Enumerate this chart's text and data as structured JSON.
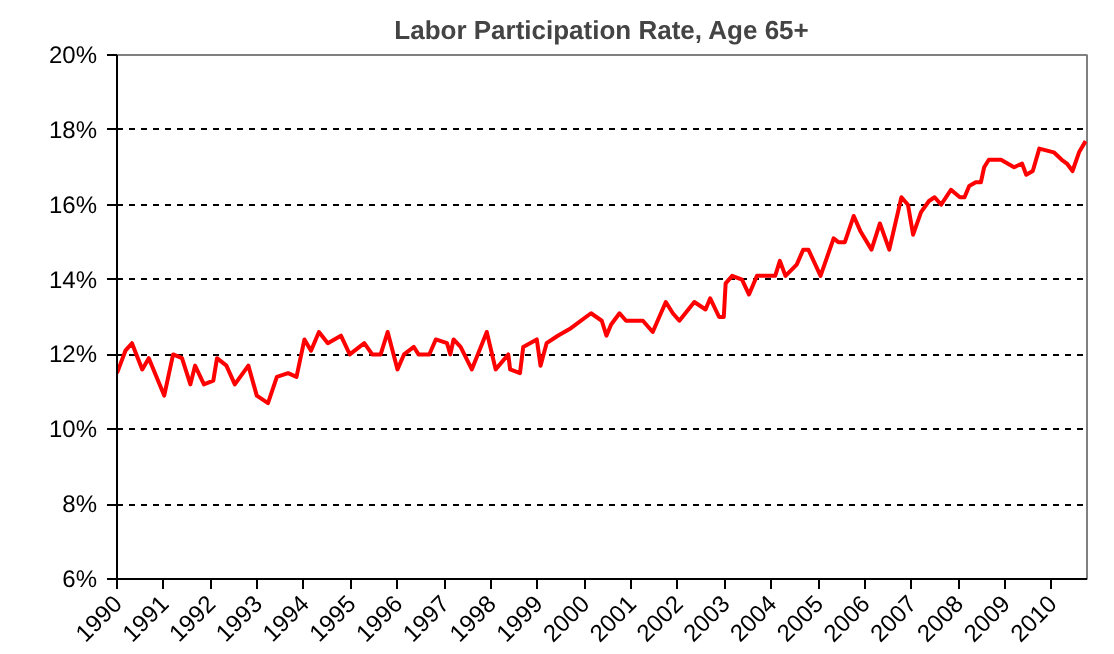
{
  "chart_data": {
    "type": "line",
    "title": "Labor Participation Rate, Age 65+",
    "x": [
      1990.0,
      1990.18,
      1990.32,
      1990.54,
      1990.68,
      1991.01,
      1991.2,
      1991.39,
      1991.57,
      1991.67,
      1991.86,
      1992.06,
      1992.14,
      1992.34,
      1992.52,
      1992.81,
      1992.99,
      1993.23,
      1993.42,
      1993.66,
      1993.84,
      1994.01,
      1994.15,
      1994.32,
      1994.51,
      1994.79,
      1994.98,
      1995.29,
      1995.46,
      1995.64,
      1995.79,
      1996.0,
      1996.14,
      1996.35,
      1996.45,
      1996.68,
      1996.82,
      1997.06,
      1997.13,
      1997.2,
      1997.35,
      1997.59,
      1997.91,
      1998.1,
      1998.37,
      1998.41,
      1998.62,
      1998.69,
      1998.98,
      1999.06,
      1999.19,
      1999.43,
      1999.71,
      2000.14,
      2000.37,
      2000.47,
      2000.57,
      2000.75,
      2000.89,
      2001.25,
      2001.46,
      2001.74,
      2001.89,
      2002.03,
      2002.35,
      2002.59,
      2002.69,
      2002.88,
      2002.98,
      2003.02,
      2003.16,
      2003.37,
      2003.52,
      2003.69,
      2004.08,
      2004.18,
      2004.3,
      2004.54,
      2004.68,
      2004.79,
      2005.05,
      2005.33,
      2005.43,
      2005.57,
      2005.76,
      2005.9,
      2006.14,
      2006.32,
      2006.52,
      2006.78,
      2006.92,
      2007.03,
      2007.2,
      2007.37,
      2007.49,
      2007.63,
      2007.84,
      2008.03,
      2008.13,
      2008.23,
      2008.37,
      2008.48,
      2008.55,
      2008.65,
      2008.91,
      2009.19,
      2009.36,
      2009.45,
      2009.59,
      2009.73,
      2010.04,
      2010.21,
      2010.32,
      2010.44,
      2010.58,
      2010.72
    ],
    "series": [
      {
        "color": "#ff0000",
        "values": [
          11.5,
          12.1,
          12.3,
          11.6,
          11.9,
          10.9,
          12.0,
          11.9,
          11.2,
          11.7,
          11.2,
          11.3,
          11.9,
          11.7,
          11.2,
          11.7,
          10.9,
          10.7,
          11.4,
          11.5,
          11.4,
          12.4,
          12.1,
          12.6,
          12.3,
          12.5,
          12.0,
          12.3,
          12.0,
          12.0,
          12.6,
          11.6,
          12.0,
          12.2,
          12.0,
          12.0,
          12.4,
          12.3,
          12.0,
          12.4,
          12.2,
          11.6,
          12.6,
          11.6,
          12.0,
          11.6,
          11.5,
          12.2,
          12.4,
          11.7,
          12.3,
          12.5,
          12.7,
          13.1,
          12.9,
          12.5,
          12.8,
          13.1,
          12.9,
          12.9,
          12.6,
          13.4,
          13.1,
          12.9,
          13.4,
          13.2,
          13.5,
          13.0,
          13.0,
          13.9,
          14.1,
          14.0,
          13.6,
          14.1,
          14.1,
          14.5,
          14.1,
          14.4,
          14.8,
          14.8,
          14.1,
          15.1,
          15.0,
          15.0,
          15.7,
          15.3,
          14.8,
          15.5,
          14.8,
          16.2,
          16.0,
          15.2,
          15.8,
          16.1,
          16.2,
          16.0,
          16.4,
          16.2,
          16.2,
          16.5,
          16.6,
          16.6,
          17.0,
          17.2,
          17.2,
          17.0,
          17.1,
          16.8,
          16.9,
          17.5,
          17.4,
          17.2,
          17.1,
          16.9,
          17.4,
          17.7
        ]
      }
    ],
    "xlim": [
      1990,
      2010.75
    ],
    "ylim": [
      6,
      20
    ],
    "xticks": [
      1990,
      1991,
      1992,
      1993,
      1994,
      1995,
      1996,
      1997,
      1998,
      1999,
      2000,
      2001,
      2002,
      2003,
      2004,
      2005,
      2006,
      2007,
      2008,
      2009,
      2010
    ],
    "yticks": [
      {
        "value": 6,
        "label": "6%"
      },
      {
        "value": 8,
        "label": "8%"
      },
      {
        "value": 10,
        "label": "10%"
      },
      {
        "value": 12,
        "label": "12%"
      },
      {
        "value": 14,
        "label": "14%"
      },
      {
        "value": 16,
        "label": "16%"
      },
      {
        "value": 18,
        "label": "18%"
      },
      {
        "value": 20,
        "label": "20%"
      }
    ],
    "grid": "y",
    "marker": "none",
    "line_style": "solid"
  }
}
